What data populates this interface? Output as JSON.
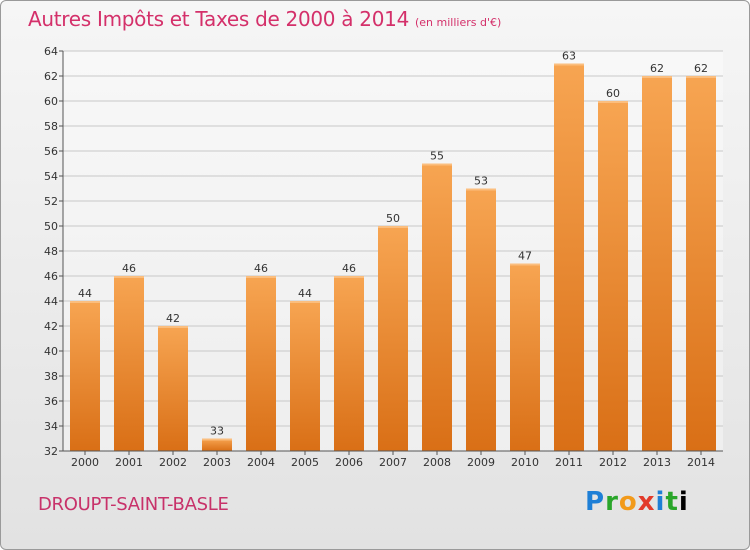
{
  "header": {
    "title": "Autres Impôts et Taxes de 2000 à 2014",
    "unit": "(en milliers d'€)"
  },
  "footer": {
    "commune": "DROUPT-SAINT-BASLE",
    "logo_letters": [
      "P",
      "r",
      "o",
      "x",
      "i",
      "t",
      "i"
    ]
  },
  "colors": {
    "bar_top": "#f7a552",
    "bar_bottom": "#d96f16",
    "title": "#d4306a",
    "grid": "#c8c8c8"
  },
  "chart_data": {
    "type": "bar",
    "title": "Autres Impôts et Taxes de 2000 à 2014",
    "categories": [
      "2000",
      "2001",
      "2002",
      "2003",
      "2004",
      "2005",
      "2006",
      "2007",
      "2008",
      "2009",
      "2010",
      "2011",
      "2012",
      "2013",
      "2014"
    ],
    "values": [
      44,
      46,
      42,
      33,
      46,
      44,
      46,
      50,
      55,
      53,
      47,
      63,
      60,
      62,
      62
    ],
    "ylim": [
      32,
      64
    ],
    "yticks": [
      32,
      34,
      36,
      38,
      40,
      42,
      44,
      46,
      48,
      50,
      52,
      54,
      56,
      58,
      60,
      62,
      64
    ],
    "grid": true,
    "legend": "none"
  }
}
